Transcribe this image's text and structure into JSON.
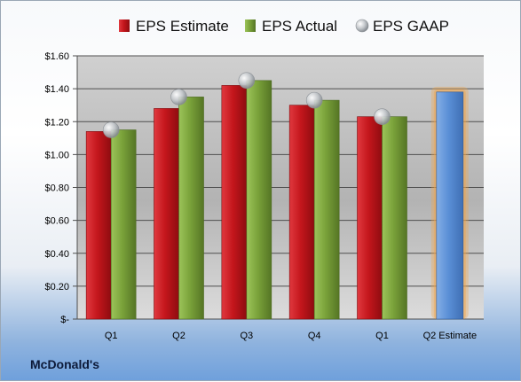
{
  "chart_data": {
    "type": "bar",
    "categories": [
      "Q1",
      "Q2",
      "Q3",
      "Q4",
      "Q1",
      "Q2 Estimate"
    ],
    "series": [
      {
        "name": "EPS Estimate",
        "values": [
          1.14,
          1.28,
          1.42,
          1.3,
          1.23,
          null
        ],
        "color": "#c4161c"
      },
      {
        "name": "EPS Actual",
        "values": [
          1.15,
          1.35,
          1.45,
          1.33,
          1.23,
          null
        ],
        "color": "#7aa23a"
      },
      {
        "name": "EPS GAAP",
        "values": [
          1.15,
          1.35,
          1.45,
          1.33,
          1.23,
          null
        ],
        "color": "#b5b9bd"
      }
    ],
    "projection": {
      "category": "Q2 Estimate",
      "value": 1.38,
      "color": "#5a8fd6",
      "glow": "#f2a54a"
    },
    "ylim": [
      0,
      1.6
    ],
    "yticks": [
      0,
      0.2,
      0.4,
      0.6,
      0.8,
      1.0,
      1.2,
      1.4,
      1.6
    ],
    "ytick_labels": [
      "$-",
      "$0.20",
      "$0.40",
      "$0.60",
      "$0.80",
      "$1.00",
      "$1.20",
      "$1.40",
      "$1.60"
    ],
    "grid": true,
    "legend_position": "top"
  },
  "company": "McDonald's"
}
